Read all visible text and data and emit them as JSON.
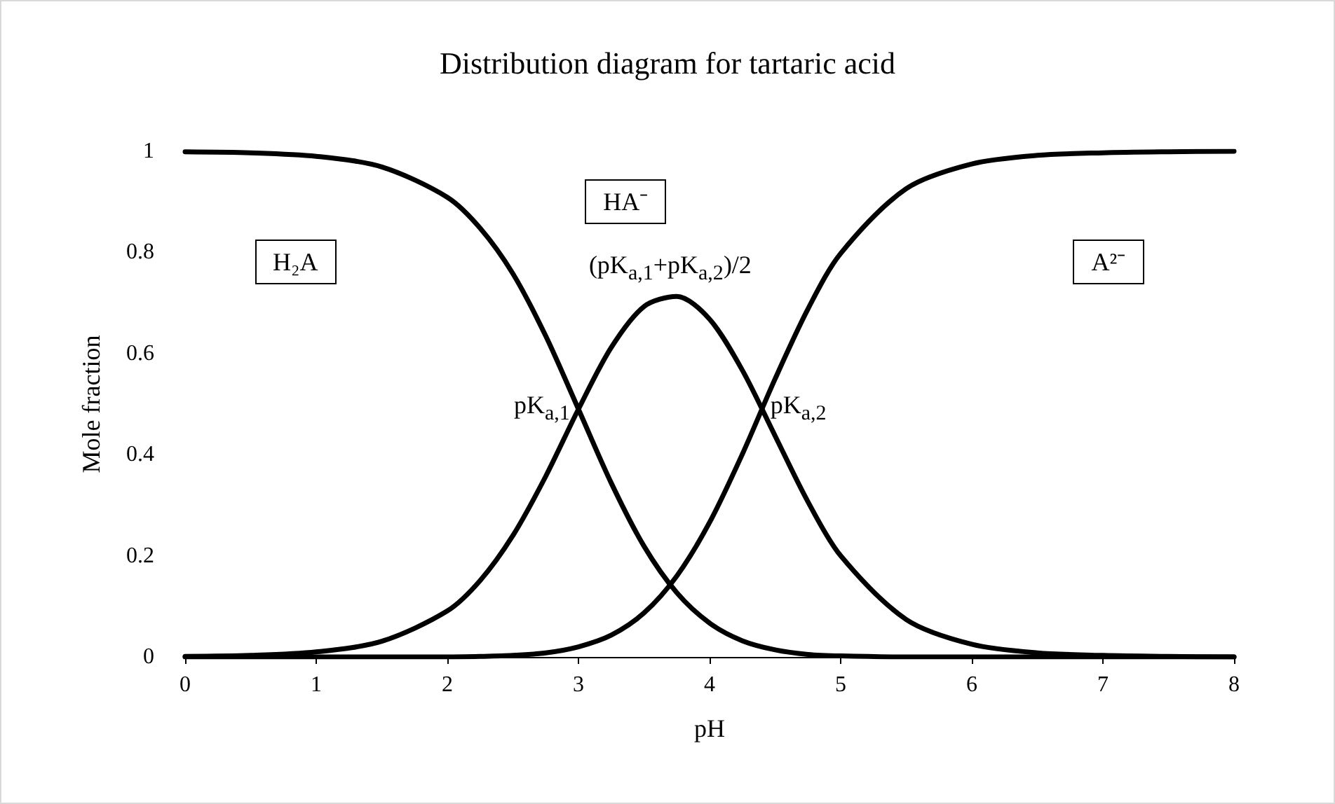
{
  "chart_data": {
    "type": "line",
    "title": "Distribution diagram for tartaric acid",
    "xlabel": "pH",
    "ylabel": "Mole fraction",
    "x": [
      0,
      0.5,
      1,
      1.5,
      2,
      2.25,
      2.5,
      2.75,
      3,
      3.25,
      3.5,
      3.75,
      4,
      4.25,
      4.5,
      4.75,
      5,
      5.5,
      6,
      6.5,
      7,
      7.5,
      8
    ],
    "series": [
      {
        "color": "#000000",
        "values": [
          0.999,
          0.997,
          0.99,
          0.969,
          0.909,
          0.848,
          0.758,
          0.635,
          0.49,
          0.344,
          0.219,
          0.127,
          0.067,
          0.032,
          0.014,
          0.005,
          0.002,
          0,
          0,
          0,
          0,
          0,
          0
        ]
      },
      {
        "color": "#000000",
        "values": [
          0.001,
          0.003,
          0.01,
          0.031,
          0.091,
          0.151,
          0.24,
          0.357,
          0.49,
          0.612,
          0.693,
          0.713,
          0.668,
          0.567,
          0.437,
          0.307,
          0.2,
          0.074,
          0.025,
          0.008,
          0.003,
          0.001,
          0
        ]
      },
      {
        "color": "#000000",
        "values": [
          0,
          0,
          0,
          0,
          0,
          0.001,
          0.003,
          0.008,
          0.02,
          0.043,
          0.087,
          0.16,
          0.266,
          0.401,
          0.55,
          0.688,
          0.798,
          0.926,
          0.975,
          0.992,
          0.997,
          0.999,
          1
        ]
      }
    ],
    "xlim": [
      0,
      8
    ],
    "xticks": [
      0,
      1,
      2,
      3,
      4,
      5,
      6,
      7,
      8
    ],
    "ylim": [
      0,
      1
    ],
    "yticks": [
      0,
      0.2,
      0.4,
      0.6,
      0.8,
      1
    ],
    "grid": false,
    "marker": "none",
    "line_style": "solid",
    "annotations": [
      "H₂A",
      "HA⁻",
      "A²⁻",
      {
        "text": "pK$_{a,1}$",
        "x": 3,
        "y": 0.49
      },
      {
        "text": "(pK$_{a,1}$+pK$_{a,2}$)/2",
        "x": 3.7,
        "y": 0.713
      },
      {
        "text": "pK$_{a,2}$",
        "x": 4.4,
        "y": 0.49
      }
    ]
  }
}
